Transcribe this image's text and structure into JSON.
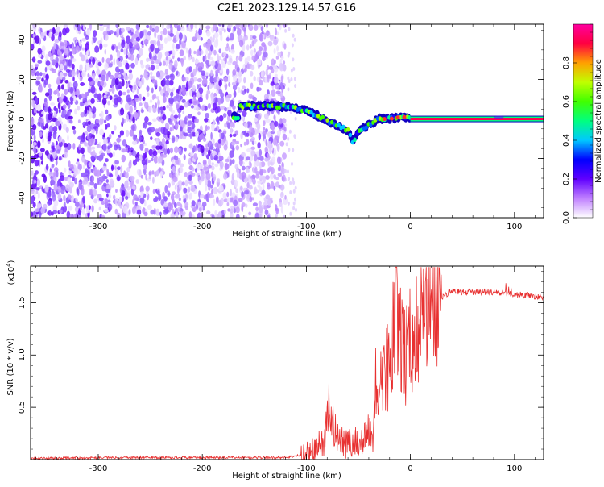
{
  "title": "C2E1.2023.129.14.57.G16",
  "chart_data": [
    {
      "type": "heatmap",
      "xlabel": "Height of straight line (km)",
      "ylabel": "Frequency (Hz)",
      "xlim": [
        -365,
        128
      ],
      "ylim": [
        -50,
        48
      ],
      "x_ticks": [
        -300,
        -200,
        -100,
        0,
        100
      ],
      "y_ticks": [
        -40,
        -20,
        0,
        20,
        40
      ],
      "colorbar": {
        "label": "Normalized spectral amplitude",
        "range": [
          0,
          1
        ],
        "ticks": [
          "0.0",
          "0.2",
          "0.4",
          "0.6",
          "0.8"
        ],
        "colors": [
          "#ffffff",
          "#c080ff",
          "#6000ff",
          "#0000ff",
          "#00c8ff",
          "#00ff80",
          "#40ff00",
          "#c0ff00",
          "#ffa000",
          "#ff0040",
          "#ff00a0"
        ]
      },
      "features": {
        "noise_region_x": [
          -365,
          -120
        ],
        "ridge": [
          {
            "x": -165,
            "y": 6.5
          },
          {
            "x": -145,
            "y": 6.5
          },
          {
            "x": -130,
            "y": 6.5
          },
          {
            "x": -115,
            "y": 6
          },
          {
            "x": -100,
            "y": 4
          },
          {
            "x": -90,
            "y": 2
          },
          {
            "x": -80,
            "y": -1
          },
          {
            "x": -70,
            "y": -3
          },
          {
            "x": -60,
            "y": -6
          },
          {
            "x": -55,
            "y": -12
          },
          {
            "x": -50,
            "y": -6
          },
          {
            "x": -40,
            "y": -3
          },
          {
            "x": -30,
            "y": 0
          },
          {
            "x": -20,
            "y": 0
          },
          {
            "x": -10,
            "y": 1
          },
          {
            "x": 0,
            "y": 1
          }
        ],
        "steady_tone": {
          "x_start": 0,
          "x_end": 128,
          "y": 0
        }
      }
    },
    {
      "type": "line",
      "xlabel": "Height of straight line (km)",
      "ylabel": "SNR (10 * v/v)",
      "y_multiplier": "(x10",
      "y_multiplier_exp": "4",
      "y_multiplier_close": ")",
      "xlim": [
        -365,
        128
      ],
      "ylim": [
        0,
        1.85
      ],
      "x_ticks": [
        -300,
        -200,
        -100,
        0,
        100
      ],
      "y_ticks": [
        "0.5",
        "1.0",
        "1.5"
      ],
      "y_tick_values": [
        0.5,
        1.0,
        1.5
      ],
      "series": [
        {
          "color": "#e83030",
          "x": [
            -365,
            -300,
            -200,
            -120,
            -100,
            -90,
            -82,
            -78,
            -74,
            -70,
            -60,
            -50,
            -45,
            -42,
            -38,
            -32,
            -28,
            -22,
            -18,
            -14,
            -10,
            -6,
            -2,
            2,
            10,
            20,
            30,
            40,
            50,
            60,
            80,
            100,
            115,
            128
          ],
          "y": [
            0.01,
            0.02,
            0.02,
            0.02,
            0.05,
            0.1,
            0.2,
            0.55,
            0.3,
            0.25,
            0.15,
            0.18,
            0.15,
            0.3,
            0.2,
            0.55,
            0.7,
            0.9,
            1.1,
            1.5,
            1.3,
            1.0,
            1.05,
            1.2,
            1.35,
            1.45,
            1.55,
            1.62,
            1.6,
            1.6,
            1.6,
            1.58,
            1.57,
            1.55
          ]
        }
      ]
    }
  ]
}
